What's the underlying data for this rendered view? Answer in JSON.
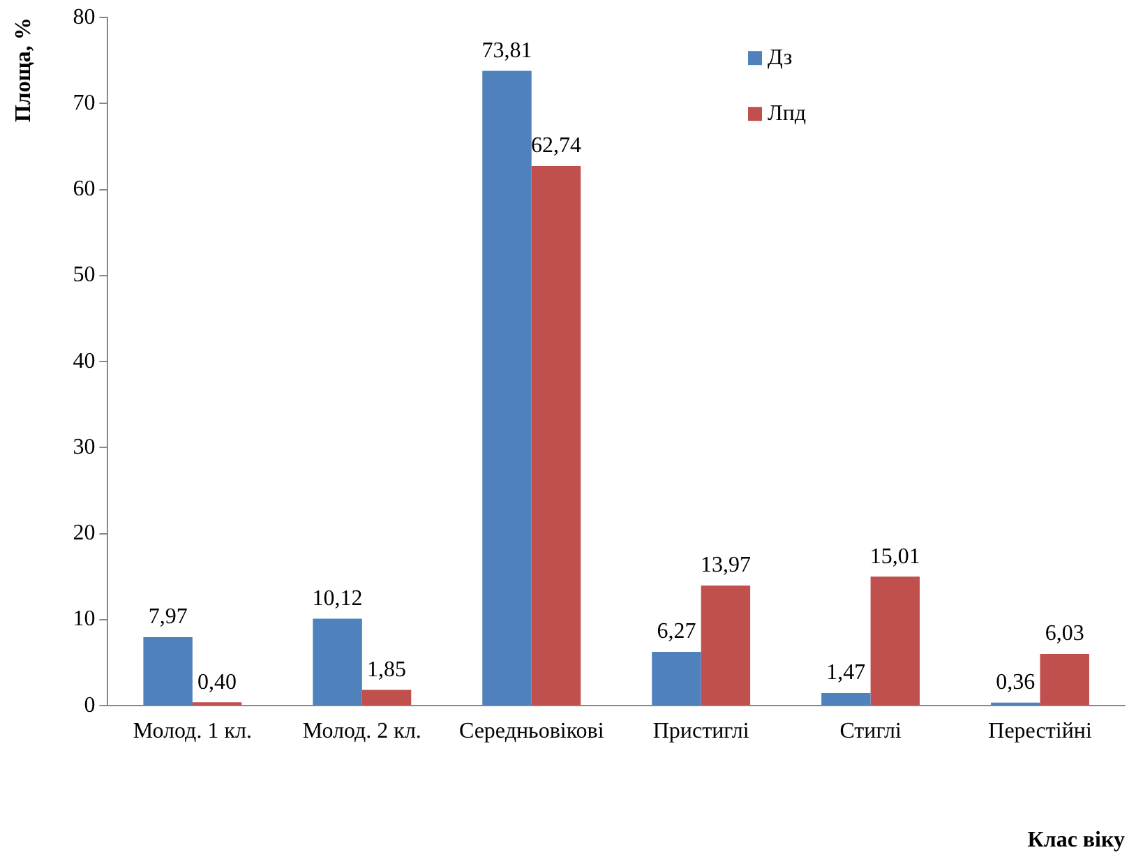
{
  "chart_data": {
    "type": "bar",
    "xlabel": "Клас віку",
    "ylabel": "Площа, %",
    "categories": [
      "Молод. 1 кл.",
      "Молод. 2 кл.",
      "Середньовікові",
      "Пристиглі",
      "Стиглі",
      "Перестійні"
    ],
    "series": [
      {
        "name": "Дз",
        "color": "#4f81bd",
        "values": [
          7.97,
          10.12,
          73.81,
          6.27,
          1.47,
          0.36
        ],
        "value_labels": [
          "7,97",
          "10,12",
          "73,81",
          "6,27",
          "1,47",
          "0,36"
        ]
      },
      {
        "name": "Лпд",
        "color": "#c0504d",
        "values": [
          0.4,
          1.85,
          62.74,
          13.97,
          15.01,
          6.03
        ],
        "value_labels": [
          "0,40",
          "1,85",
          "62,74",
          "13,97",
          "15,01",
          "6,03"
        ]
      }
    ],
    "ylim": [
      0,
      80
    ],
    "yticks": [
      0,
      10,
      20,
      30,
      40,
      50,
      60,
      70,
      80
    ],
    "grid": false,
    "legend": "top right"
  }
}
